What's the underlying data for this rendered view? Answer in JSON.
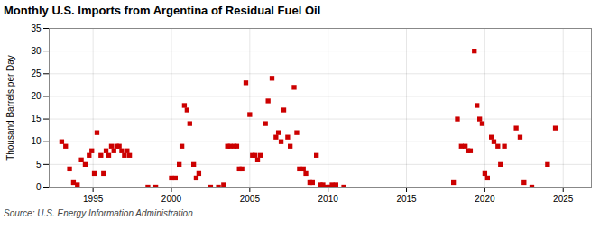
{
  "chart_data": {
    "type": "scatter",
    "title": "Monthly U.S. Imports from Argentina of Residual Fuel Oil",
    "ylabel": "Thousand Barrels per Day",
    "caption": "Source: U.S. Energy Information Administration",
    "xlim": [
      1992.2,
      2026.8
    ],
    "ylim": [
      0,
      35
    ],
    "xticks": [
      1995,
      2000,
      2005,
      2010,
      2015,
      2020,
      2025
    ],
    "yticks": [
      0,
      5,
      10,
      15,
      20,
      25,
      30,
      35
    ],
    "grid": true,
    "color": "#cc0000",
    "marker": "square",
    "x": [
      1993.0,
      1993.25,
      1993.5,
      1993.75,
      1994.0,
      1994.25,
      1994.5,
      1994.75,
      1994.92,
      1995.08,
      1995.25,
      1995.5,
      1995.67,
      1995.83,
      1996.0,
      1996.17,
      1996.33,
      1996.5,
      1996.67,
      1996.83,
      1997.0,
      1997.17,
      1997.33,
      1998.5,
      1999.0,
      2000.0,
      2000.25,
      2000.5,
      2000.67,
      2000.83,
      2001.0,
      2001.17,
      2001.42,
      2001.58,
      2001.75,
      2002.5,
      2003.0,
      2003.33,
      2003.58,
      2003.75,
      2004.0,
      2004.17,
      2004.33,
      2004.5,
      2004.75,
      2005.0,
      2005.17,
      2005.33,
      2005.5,
      2005.67,
      2006.0,
      2006.17,
      2006.42,
      2006.67,
      2006.83,
      2007.0,
      2007.17,
      2007.42,
      2007.58,
      2007.83,
      2008.0,
      2008.17,
      2008.42,
      2008.58,
      2008.83,
      2009.0,
      2009.25,
      2009.5,
      2009.67,
      2009.92,
      2010.08,
      2010.25,
      2010.5,
      2011.0,
      2018.0,
      2018.25,
      2018.5,
      2018.75,
      2018.92,
      2019.08,
      2019.33,
      2019.5,
      2019.67,
      2019.83,
      2020.0,
      2020.17,
      2020.42,
      2020.58,
      2020.83,
      2021.0,
      2021.25,
      2022.0,
      2022.25,
      2022.5,
      2023.0,
      2024.0,
      2024.5
    ],
    "values": [
      10.0,
      9.0,
      4.0,
      1.0,
      0.5,
      6.0,
      5.0,
      7.0,
      8.0,
      3.0,
      12.0,
      7.0,
      3.0,
      8.0,
      7.0,
      9.0,
      8.0,
      9.0,
      9.0,
      8.0,
      7.0,
      8.0,
      7.0,
      0.0,
      0.0,
      2.0,
      2.0,
      5.0,
      9.0,
      18.0,
      17.0,
      14.0,
      5.0,
      2.0,
      3.0,
      0.0,
      0.0,
      0.5,
      9.0,
      9.0,
      9.0,
      9.0,
      4.0,
      4.0,
      23.0,
      16.0,
      7.0,
      7.0,
      6.0,
      7.0,
      14.0,
      19.0,
      24.0,
      11.0,
      12.0,
      10.0,
      17.0,
      11.0,
      9.0,
      22.0,
      12.0,
      4.0,
      4.0,
      3.0,
      1.0,
      1.0,
      7.0,
      0.5,
      0.5,
      0.0,
      0.0,
      0.5,
      0.5,
      0.0,
      1.0,
      15.0,
      9.0,
      9.0,
      8.0,
      8.0,
      30.0,
      18.0,
      15.0,
      14.0,
      3.0,
      2.0,
      11.0,
      10.0,
      9.0,
      5.0,
      9.0,
      13.0,
      11.0,
      1.0,
      0.0,
      5.0,
      13.0
    ]
  }
}
